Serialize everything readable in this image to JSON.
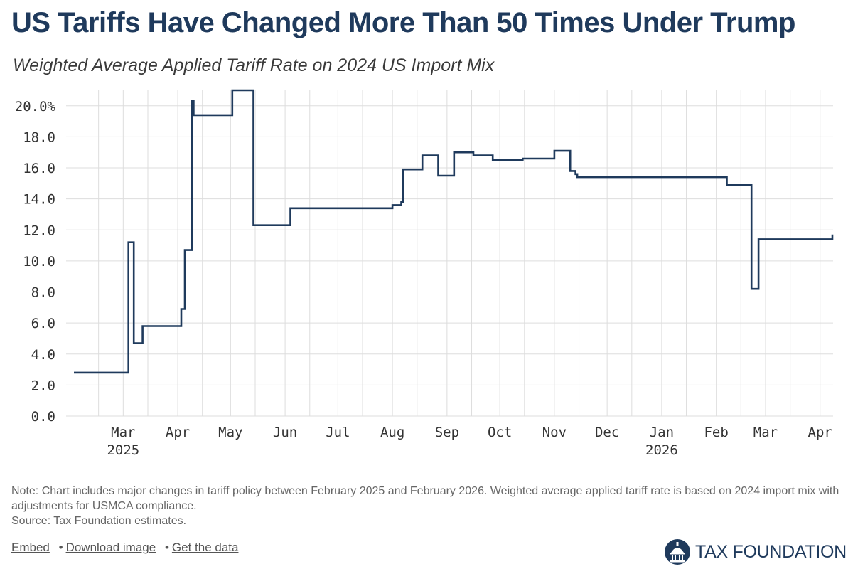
{
  "header": {
    "title": "US Tariffs Have Changed More Than 50 Times Under Trump",
    "subtitle": "Weighted Average Applied Tariff Rate on 2024 US Import Mix"
  },
  "chart_data": {
    "type": "line",
    "step": true,
    "title": "US Tariffs Have Changed More Than 50 Times Under Trump",
    "subtitle": "Weighted Average Applied Tariff Rate on 2024 US Import Mix",
    "xlabel": "",
    "ylabel": "",
    "xlim": [
      "2025-02-01",
      "2026-04-10"
    ],
    "ylim": [
      0,
      21
    ],
    "y_ticks": [
      0,
      2,
      4,
      6,
      8,
      10,
      12,
      14,
      16,
      18,
      20
    ],
    "y_tick_labels": [
      "0.0",
      "2.0",
      "4.0",
      "6.0",
      "8.0",
      "10.0",
      "12.0",
      "14.0",
      "16.0",
      "18.0",
      "20.0%"
    ],
    "x_ticks": [
      {
        "date": "2025-03-01",
        "label": "Mar",
        "year": "2025"
      },
      {
        "date": "2025-04-01",
        "label": "Apr"
      },
      {
        "date": "2025-05-01",
        "label": "May"
      },
      {
        "date": "2025-06-01",
        "label": "Jun"
      },
      {
        "date": "2025-07-01",
        "label": "Jul"
      },
      {
        "date": "2025-08-01",
        "label": "Aug"
      },
      {
        "date": "2025-09-01",
        "label": "Sep"
      },
      {
        "date": "2025-10-01",
        "label": "Oct"
      },
      {
        "date": "2025-11-01",
        "label": "Nov"
      },
      {
        "date": "2025-12-01",
        "label": "Dec"
      },
      {
        "date": "2026-01-01",
        "label": "Jan",
        "year": "2026"
      },
      {
        "date": "2026-02-01",
        "label": "Feb"
      },
      {
        "date": "2026-03-01",
        "label": "Mar"
      },
      {
        "date": "2026-04-01",
        "label": "Apr"
      }
    ],
    "grid": true,
    "legend": "none",
    "line_color": "#1f3a5c",
    "series": [
      {
        "points": [
          {
            "x": "2025-02-01",
            "y": 2.8
          },
          {
            "x": "2025-03-04",
            "y": 11.2
          },
          {
            "x": "2025-03-07",
            "y": 4.7
          },
          {
            "x": "2025-03-12",
            "y": 5.8
          },
          {
            "x": "2025-04-03",
            "y": 6.9
          },
          {
            "x": "2025-04-05",
            "y": 10.7
          },
          {
            "x": "2025-04-09",
            "y": 20.3
          },
          {
            "x": "2025-04-10",
            "y": 19.4
          },
          {
            "x": "2025-05-02",
            "y": 21.0
          },
          {
            "x": "2025-05-14",
            "y": 12.3
          },
          {
            "x": "2025-06-04",
            "y": 13.4
          },
          {
            "x": "2025-08-01",
            "y": 13.6
          },
          {
            "x": "2025-08-06",
            "y": 13.8
          },
          {
            "x": "2025-08-07",
            "y": 15.9
          },
          {
            "x": "2025-08-18",
            "y": 16.8
          },
          {
            "x": "2025-08-27",
            "y": 15.5
          },
          {
            "x": "2025-09-05",
            "y": 17.0
          },
          {
            "x": "2025-09-16",
            "y": 16.8
          },
          {
            "x": "2025-09-27",
            "y": 16.5
          },
          {
            "x": "2025-10-14",
            "y": 16.6
          },
          {
            "x": "2025-11-01",
            "y": 17.1
          },
          {
            "x": "2025-11-10",
            "y": 15.8
          },
          {
            "x": "2025-11-13",
            "y": 15.6
          },
          {
            "x": "2025-11-14",
            "y": 15.4
          },
          {
            "x": "2026-02-07",
            "y": 14.9
          },
          {
            "x": "2026-02-21",
            "y": 8.2
          },
          {
            "x": "2026-02-25",
            "y": 11.4
          },
          {
            "x": "2026-04-08",
            "y": 11.7
          }
        ],
        "end": "2026-04-08"
      }
    ]
  },
  "note": {
    "text": "Note: Chart includes major changes in tariff policy between February 2025 and February 2026. Weighted average applied tariff rate is based on 2024 import mix with adjustments for USMCA compliance.",
    "source": "Source: Tax Foundation estimates."
  },
  "footer": {
    "embed": "Embed",
    "download": "Download image",
    "data": "Get the data",
    "separator": "•",
    "brand": "TAX FOUNDATION"
  }
}
